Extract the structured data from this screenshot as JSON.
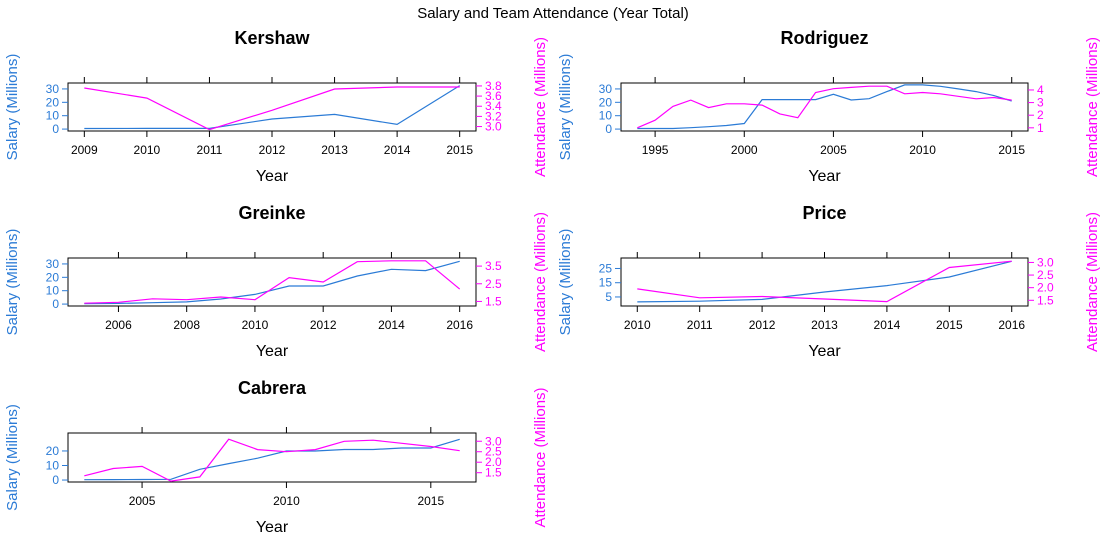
{
  "title": "Salary and Team Attendance (Year Total)",
  "colors": {
    "salary": "#2b7bd6",
    "attendance": "#ff00ff",
    "axis": "#000000"
  },
  "chart_data": [
    {
      "type": "line",
      "title": "Kershaw",
      "xlabel": "Year",
      "ylabel_left": "Salary (Millions)",
      "ylabel_right": "Attendance (Millions)",
      "xlim": [
        2009,
        2015
      ],
      "xticks": [
        2009,
        2010,
        2011,
        2012,
        2013,
        2014,
        2015
      ],
      "ylim_left": [
        0,
        33
      ],
      "yticks_left": [
        0,
        10,
        20,
        30
      ],
      "ylim_right": [
        2.95,
        3.82
      ],
      "yticks_right": [
        3.0,
        3.2,
        3.4,
        3.6,
        3.8
      ],
      "series": [
        {
          "name": "Salary (Millions)",
          "axis": "left",
          "x": [
            2009,
            2010,
            2011,
            2012,
            2013,
            2014,
            2015
          ],
          "values": [
            0.4,
            0.5,
            0.5,
            7.5,
            11.0,
            3.5,
            32.5
          ]
        },
        {
          "name": "Attendance (Millions)",
          "axis": "right",
          "x": [
            2009,
            2010,
            2011,
            2012,
            2013,
            2014,
            2015
          ],
          "values": [
            3.76,
            3.56,
            2.94,
            3.32,
            3.74,
            3.78,
            3.78
          ]
        }
      ]
    },
    {
      "type": "line",
      "title": "Rodriguez",
      "xlabel": "Year",
      "ylabel_left": "Salary (Millions)",
      "ylabel_right": "Attendance (Millions)",
      "xlim": [
        1994,
        2015
      ],
      "xticks": [
        1995,
        2000,
        2005,
        2010,
        2015
      ],
      "ylim_left": [
        0,
        33
      ],
      "yticks_left": [
        0,
        10,
        20,
        30
      ],
      "ylim_right": [
        0.9,
        4.4
      ],
      "yticks_right": [
        1,
        2,
        3,
        4
      ],
      "series": [
        {
          "name": "Salary (Millions)",
          "axis": "left",
          "x": [
            1994,
            1995,
            1996,
            1997,
            1998,
            1999,
            2000,
            2001,
            2002,
            2003,
            2004,
            2005,
            2006,
            2007,
            2008,
            2009,
            2010,
            2011,
            2012,
            2013,
            2014,
            2015
          ],
          "values": [
            0.4,
            0.4,
            0.4,
            1.0,
            1.8,
            2.7,
            4.2,
            22,
            22,
            22,
            22,
            26,
            21.7,
            22.7,
            28,
            33,
            33,
            32,
            30,
            28,
            25,
            21
          ]
        },
        {
          "name": "Attendance (Millions)",
          "axis": "right",
          "x": [
            1994,
            1995,
            1996,
            1997,
            1998,
            1999,
            2000,
            2001,
            2002,
            2003,
            2004,
            2005,
            2006,
            2007,
            2008,
            2009,
            2010,
            2011,
            2012,
            2013,
            2014,
            2015
          ],
          "values": [
            1.0,
            1.6,
            2.7,
            3.2,
            2.6,
            2.9,
            2.9,
            2.8,
            2.1,
            1.8,
            3.8,
            4.1,
            4.2,
            4.3,
            4.3,
            3.7,
            3.8,
            3.7,
            3.5,
            3.3,
            3.4,
            3.2
          ]
        }
      ]
    },
    {
      "type": "line",
      "title": "Greinke",
      "xlabel": "Year",
      "ylabel_left": "Salary (Millions)",
      "ylabel_right": "Attendance (Millions)",
      "xlim": [
        2005,
        2016
      ],
      "xticks": [
        2006,
        2008,
        2010,
        2012,
        2014,
        2016
      ],
      "ylim_left": [
        0,
        33
      ],
      "yticks_left": [
        0,
        10,
        20,
        30
      ],
      "ylim_right": [
        1.35,
        3.85
      ],
      "yticks_right": [
        1.5,
        2.5,
        3.5
      ],
      "series": [
        {
          "name": "Salary (Millions)",
          "axis": "left",
          "x": [
            2005,
            2006,
            2007,
            2008,
            2009,
            2010,
            2011,
            2012,
            2013,
            2014,
            2015,
            2016
          ],
          "values": [
            0.3,
            0.5,
            1.0,
            1.6,
            3.8,
            7.2,
            13.5,
            13.5,
            21,
            26,
            25,
            32
          ]
        },
        {
          "name": "Attendance (Millions)",
          "axis": "right",
          "x": [
            2005,
            2006,
            2007,
            2008,
            2009,
            2010,
            2011,
            2012,
            2013,
            2014,
            2015,
            2016
          ],
          "values": [
            1.4,
            1.45,
            1.65,
            1.6,
            1.75,
            1.6,
            2.85,
            2.6,
            3.75,
            3.8,
            3.8,
            2.2
          ]
        }
      ]
    },
    {
      "type": "line",
      "title": "Price",
      "xlabel": "Year",
      "ylabel_left": "Salary (Millions)",
      "ylabel_right": "Attendance (Millions)",
      "xlim": [
        2010,
        2016
      ],
      "xticks": [
        2010,
        2011,
        2012,
        2013,
        2014,
        2015,
        2016
      ],
      "ylim_left": [
        0,
        31
      ],
      "yticks_left": [
        5,
        15,
        25
      ],
      "ylim_right": [
        1.35,
        3.1
      ],
      "yticks_right": [
        1.5,
        2.0,
        2.5,
        3.0
      ],
      "series": [
        {
          "name": "Salary (Millions)",
          "axis": "left",
          "x": [
            2010,
            2011,
            2012,
            2013,
            2014,
            2015,
            2016
          ],
          "values": [
            1.5,
            2.0,
            3.3,
            8.5,
            13.0,
            19.0,
            30.0
          ]
        },
        {
          "name": "Attendance (Millions)",
          "axis": "right",
          "x": [
            2010,
            2011,
            2012,
            2013,
            2014,
            2015,
            2016
          ],
          "values": [
            1.95,
            1.6,
            1.65,
            1.55,
            1.45,
            2.8,
            3.05
          ]
        }
      ]
    },
    {
      "type": "line",
      "title": "Cabrera",
      "xlabel": "Year",
      "ylabel_left": "Salary (Millions)",
      "ylabel_right": "Attendance (Millions)",
      "xlim": [
        2003,
        2016
      ],
      "xticks": [
        2005,
        2010,
        2015
      ],
      "ylim_left": [
        0,
        31
      ],
      "yticks_left": [
        0,
        10,
        20
      ],
      "ylim_right": [
        1.15,
        3.3
      ],
      "yticks_right": [
        1.5,
        2.0,
        2.5,
        3.0
      ],
      "series": [
        {
          "name": "Salary (Millions)",
          "axis": "left",
          "x": [
            2003,
            2004,
            2005,
            2006,
            2007,
            2008,
            2009,
            2010,
            2011,
            2012,
            2013,
            2014,
            2015,
            2016
          ],
          "values": [
            0.2,
            0.3,
            0.4,
            0.5,
            7.4,
            11.3,
            15.0,
            20.0,
            20.0,
            21.0,
            21.0,
            22.0,
            22.0,
            28.0
          ]
        },
        {
          "name": "Attendance (Millions)",
          "axis": "right",
          "x": [
            2003,
            2004,
            2005,
            2006,
            2007,
            2008,
            2009,
            2010,
            2011,
            2012,
            2013,
            2014,
            2015,
            2016
          ],
          "values": [
            1.35,
            1.7,
            1.8,
            1.1,
            1.3,
            3.1,
            2.6,
            2.5,
            2.6,
            3.0,
            3.05,
            2.9,
            2.75,
            2.55
          ]
        }
      ]
    }
  ]
}
